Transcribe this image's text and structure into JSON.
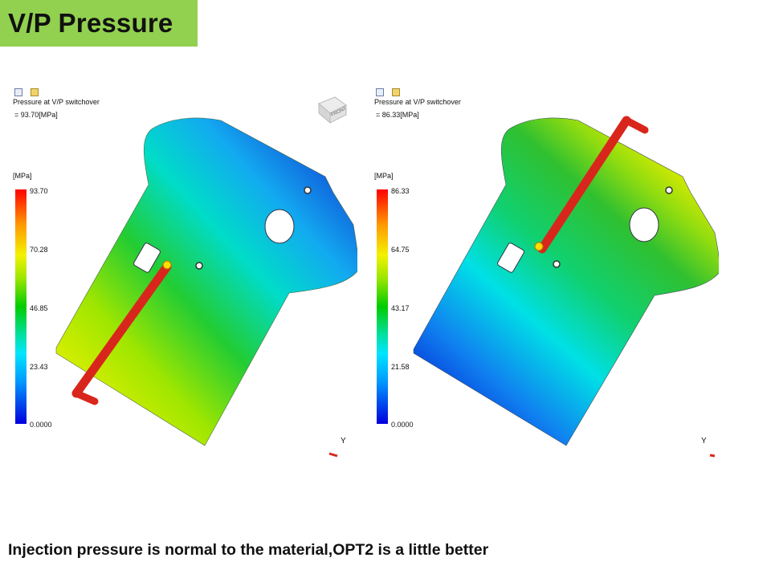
{
  "slide": {
    "title": "V/P Pressure",
    "conclusion": "Injection pressure is normal to the material,OPT2 is a  little better"
  },
  "panels": [
    {
      "result_label": "Pressure at V/P switchover",
      "result_value": "= 93.70[MPa]",
      "unit": "[MPa]",
      "legend_ticks": [
        "93.70",
        "70.28",
        "46.85",
        "23.43",
        "0.0000"
      ],
      "view_cube_label": "FRONT",
      "axis_label": "Y"
    },
    {
      "result_label": "Pressure at V/P switchover",
      "result_value": "= 86.33[MPa]",
      "unit": "[MPa]",
      "legend_ticks": [
        "86.33",
        "64.75",
        "43.17",
        "21.58",
        "0.0000"
      ],
      "axis_label": "Y"
    }
  ],
  "colors": {
    "title_bg": "#92d050",
    "legend_max": "#ff0000",
    "legend_min": "#0000dd",
    "runner": "#d9261c"
  },
  "icons": [
    "render-icon",
    "result-icon",
    "view-cube-icon"
  ]
}
